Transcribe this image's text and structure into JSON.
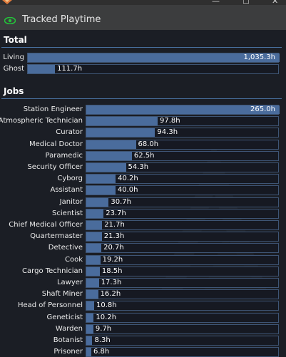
{
  "window": {
    "minimize": "—",
    "maximize": "☐",
    "close": "✕"
  },
  "header": {
    "title": "Tracked Playtime",
    "icon": "eye-icon",
    "accent": "#23c43a"
  },
  "total": {
    "title": "Total",
    "rows": [
      {
        "label": "Living",
        "value": "1,035.3h",
        "hours": 1035.3
      },
      {
        "label": "Ghost",
        "value": "111.7h",
        "hours": 111.7
      }
    ]
  },
  "jobs": {
    "title": "Jobs",
    "rows": [
      {
        "label": "Station Engineer",
        "value": "265.0h",
        "hours": 265.0
      },
      {
        "label": "Atmospheric Technician",
        "value": "97.8h",
        "hours": 97.8
      },
      {
        "label": "Curator",
        "value": "94.3h",
        "hours": 94.3
      },
      {
        "label": "Medical Doctor",
        "value": "68.0h",
        "hours": 68.0
      },
      {
        "label": "Paramedic",
        "value": "62.5h",
        "hours": 62.5
      },
      {
        "label": "Security Officer",
        "value": "54.3h",
        "hours": 54.3
      },
      {
        "label": "Cyborg",
        "value": "40.2h",
        "hours": 40.2
      },
      {
        "label": "Assistant",
        "value": "40.0h",
        "hours": 40.0
      },
      {
        "label": "Janitor",
        "value": "30.7h",
        "hours": 30.7
      },
      {
        "label": "Scientist",
        "value": "23.7h",
        "hours": 23.7
      },
      {
        "label": "Chief Medical Officer",
        "value": "21.7h",
        "hours": 21.7
      },
      {
        "label": "Quartermaster",
        "value": "21.3h",
        "hours": 21.3
      },
      {
        "label": "Detective",
        "value": "20.7h",
        "hours": 20.7
      },
      {
        "label": "Cook",
        "value": "19.2h",
        "hours": 19.2
      },
      {
        "label": "Cargo Technician",
        "value": "18.5h",
        "hours": 18.5
      },
      {
        "label": "Lawyer",
        "value": "17.3h",
        "hours": 17.3
      },
      {
        "label": "Shaft Miner",
        "value": "16.2h",
        "hours": 16.2
      },
      {
        "label": "Head of Personnel",
        "value": "10.8h",
        "hours": 10.8
      },
      {
        "label": "Geneticist",
        "value": "10.2h",
        "hours": 10.2
      },
      {
        "label": "Warden",
        "value": "9.7h",
        "hours": 9.7
      },
      {
        "label": "Botanist",
        "value": "8.3h",
        "hours": 8.3
      },
      {
        "label": "Prisoner",
        "value": "6.8h",
        "hours": 6.8
      }
    ]
  },
  "colors": {
    "bar_fill": "#4a6c9c",
    "bar_track": "#161922",
    "section_line": "#4972a1"
  }
}
